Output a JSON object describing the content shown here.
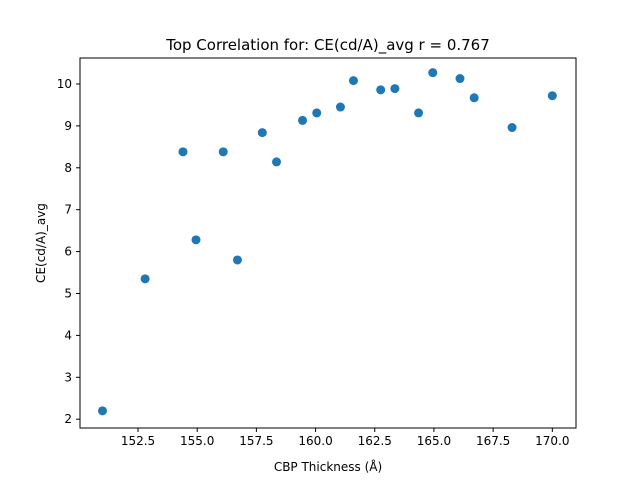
{
  "chart_data": {
    "type": "scatter",
    "title": "Top Correlation for: CE(cd/A)_avg r = 0.767",
    "xlabel": "CBP Thickness (Å)",
    "ylabel": "CE(cd/A)_avg",
    "xlim": [
      150.05,
      171.0
    ],
    "ylim": [
      1.79,
      10.62
    ],
    "xticks": [
      152.5,
      155.0,
      157.5,
      160.0,
      162.5,
      165.0,
      167.5,
      170.0
    ],
    "xtick_labels": [
      "152.5",
      "155.0",
      "157.5",
      "160.0",
      "162.5",
      "165.0",
      "167.5",
      "170.0"
    ],
    "yticks": [
      2,
      3,
      4,
      5,
      6,
      7,
      8,
      9,
      10
    ],
    "ytick_labels": [
      "2",
      "3",
      "4",
      "5",
      "6",
      "7",
      "8",
      "9",
      "10"
    ],
    "grid": false,
    "marker_color": "#1f77b4",
    "points": [
      {
        "x": 151.0,
        "y": 2.2
      },
      {
        "x": 152.8,
        "y": 5.35
      },
      {
        "x": 154.4,
        "y": 8.38
      },
      {
        "x": 154.95,
        "y": 6.28
      },
      {
        "x": 156.1,
        "y": 8.38
      },
      {
        "x": 156.7,
        "y": 5.8
      },
      {
        "x": 157.75,
        "y": 8.84
      },
      {
        "x": 158.35,
        "y": 8.14
      },
      {
        "x": 159.45,
        "y": 9.13
      },
      {
        "x": 160.05,
        "y": 9.31
      },
      {
        "x": 161.05,
        "y": 9.45
      },
      {
        "x": 161.6,
        "y": 10.08
      },
      {
        "x": 162.75,
        "y": 9.86
      },
      {
        "x": 163.35,
        "y": 9.89
      },
      {
        "x": 164.35,
        "y": 9.31
      },
      {
        "x": 164.95,
        "y": 10.27
      },
      {
        "x": 166.1,
        "y": 10.13
      },
      {
        "x": 166.7,
        "y": 9.67
      },
      {
        "x": 168.3,
        "y": 8.96
      },
      {
        "x": 170.0,
        "y": 9.72
      }
    ]
  }
}
